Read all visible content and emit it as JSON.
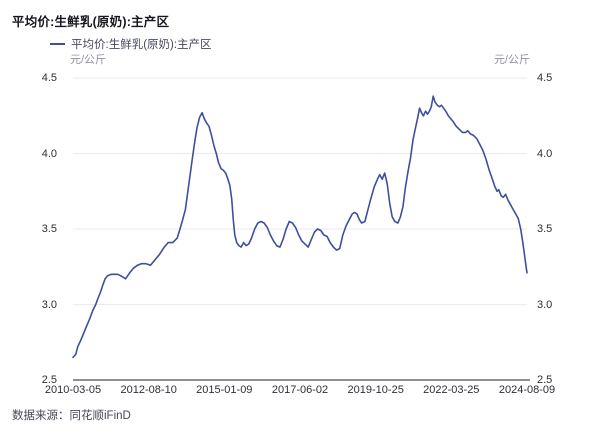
{
  "header": {
    "title": "平均价:生鲜乳(原奶):主产区"
  },
  "legend": {
    "label": "平均价:生鲜乳(原奶):主产区"
  },
  "axes": {
    "unit_left": "元/公斤",
    "unit_right": "元/公斤",
    "y_ticks": [
      "4.5",
      "4.0",
      "3.5",
      "3.0",
      "2.5"
    ],
    "x_ticks": [
      "2010-03-05",
      "2012-08-10",
      "2015-01-09",
      "2017-06-02",
      "2019-10-25",
      "2022-03-25",
      "2024-08-09"
    ]
  },
  "footer": {
    "source": "数据来源：同花顺iFinD"
  },
  "colors": {
    "line": "#3E4F9E",
    "grid": "#e9eaf2",
    "axis": "#8f8f9c",
    "text": "#2e2e3a"
  },
  "chart_data": {
    "type": "line",
    "title": "平均价:生鲜乳(原奶):主产区",
    "ylabel": "元/公斤",
    "ylim": [
      2.5,
      4.5
    ],
    "xlim_years": [
      2010.18,
      2024.6
    ],
    "y_tick_values": [
      4.5,
      4.0,
      3.5,
      3.0,
      2.5
    ],
    "x_tick_labels": [
      "2010-03-05",
      "2012-08-10",
      "2015-01-09",
      "2017-06-02",
      "2019-10-25",
      "2022-03-25",
      "2024-08-09"
    ],
    "grid": "horizontal",
    "legend_position": "top-left",
    "series": [
      {
        "name": "平均价:生鲜乳(原奶):主产区",
        "color": "#3E4F9E",
        "points": [
          [
            2010.18,
            2.65
          ],
          [
            2010.27,
            2.67
          ],
          [
            2010.33,
            2.72
          ],
          [
            2010.42,
            2.76
          ],
          [
            2010.5,
            2.8
          ],
          [
            2010.6,
            2.85
          ],
          [
            2010.7,
            2.9
          ],
          [
            2010.81,
            2.96
          ],
          [
            2010.9,
            3.0
          ],
          [
            2010.97,
            3.04
          ],
          [
            2011.05,
            3.08
          ],
          [
            2011.13,
            3.13
          ],
          [
            2011.2,
            3.17
          ],
          [
            2011.28,
            3.19
          ],
          [
            2011.4,
            3.2
          ],
          [
            2011.5,
            3.2
          ],
          [
            2011.6,
            3.2
          ],
          [
            2011.7,
            3.19
          ],
          [
            2011.85,
            3.17
          ],
          [
            2011.98,
            3.21
          ],
          [
            2012.1,
            3.24
          ],
          [
            2012.23,
            3.26
          ],
          [
            2012.35,
            3.27
          ],
          [
            2012.5,
            3.27
          ],
          [
            2012.64,
            3.26
          ],
          [
            2012.76,
            3.29
          ],
          [
            2012.92,
            3.33
          ],
          [
            2013.08,
            3.38
          ],
          [
            2013.2,
            3.41
          ],
          [
            2013.35,
            3.41
          ],
          [
            2013.49,
            3.44
          ],
          [
            2013.58,
            3.5
          ],
          [
            2013.66,
            3.56
          ],
          [
            2013.75,
            3.63
          ],
          [
            2013.85,
            3.78
          ],
          [
            2013.96,
            3.95
          ],
          [
            2014.05,
            4.08
          ],
          [
            2014.12,
            4.17
          ],
          [
            2014.2,
            4.24
          ],
          [
            2014.28,
            4.27
          ],
          [
            2014.35,
            4.23
          ],
          [
            2014.43,
            4.2
          ],
          [
            2014.5,
            4.18
          ],
          [
            2014.58,
            4.12
          ],
          [
            2014.66,
            4.05
          ],
          [
            2014.73,
            4.0
          ],
          [
            2014.8,
            3.94
          ],
          [
            2014.88,
            3.9
          ],
          [
            2014.95,
            3.89
          ],
          [
            2015.03,
            3.87
          ],
          [
            2015.1,
            3.83
          ],
          [
            2015.16,
            3.79
          ],
          [
            2015.22,
            3.7
          ],
          [
            2015.27,
            3.56
          ],
          [
            2015.32,
            3.46
          ],
          [
            2015.38,
            3.41
          ],
          [
            2015.45,
            3.39
          ],
          [
            2015.52,
            3.38
          ],
          [
            2015.6,
            3.41
          ],
          [
            2015.68,
            3.39
          ],
          [
            2015.76,
            3.4
          ],
          [
            2015.85,
            3.44
          ],
          [
            2015.95,
            3.5
          ],
          [
            2016.05,
            3.54
          ],
          [
            2016.15,
            3.55
          ],
          [
            2016.25,
            3.54
          ],
          [
            2016.35,
            3.51
          ],
          [
            2016.45,
            3.46
          ],
          [
            2016.55,
            3.42
          ],
          [
            2016.65,
            3.39
          ],
          [
            2016.75,
            3.38
          ],
          [
            2016.85,
            3.43
          ],
          [
            2016.95,
            3.5
          ],
          [
            2017.05,
            3.55
          ],
          [
            2017.15,
            3.54
          ],
          [
            2017.25,
            3.51
          ],
          [
            2017.35,
            3.46
          ],
          [
            2017.45,
            3.42
          ],
          [
            2017.55,
            3.4
          ],
          [
            2017.65,
            3.38
          ],
          [
            2017.75,
            3.43
          ],
          [
            2017.85,
            3.48
          ],
          [
            2017.95,
            3.5
          ],
          [
            2018.05,
            3.49
          ],
          [
            2018.15,
            3.46
          ],
          [
            2018.25,
            3.45
          ],
          [
            2018.35,
            3.41
          ],
          [
            2018.45,
            3.38
          ],
          [
            2018.55,
            3.36
          ],
          [
            2018.65,
            3.37
          ],
          [
            2018.75,
            3.46
          ],
          [
            2018.85,
            3.52
          ],
          [
            2018.95,
            3.56
          ],
          [
            2019.05,
            3.6
          ],
          [
            2019.12,
            3.61
          ],
          [
            2019.2,
            3.6
          ],
          [
            2019.28,
            3.56
          ],
          [
            2019.35,
            3.54
          ],
          [
            2019.45,
            3.55
          ],
          [
            2019.55,
            3.63
          ],
          [
            2019.65,
            3.71
          ],
          [
            2019.75,
            3.78
          ],
          [
            2019.85,
            3.83
          ],
          [
            2019.92,
            3.86
          ],
          [
            2020.0,
            3.83
          ],
          [
            2020.08,
            3.87
          ],
          [
            2020.16,
            3.8
          ],
          [
            2020.24,
            3.67
          ],
          [
            2020.32,
            3.58
          ],
          [
            2020.4,
            3.55
          ],
          [
            2020.5,
            3.54
          ],
          [
            2020.58,
            3.58
          ],
          [
            2020.66,
            3.65
          ],
          [
            2020.74,
            3.78
          ],
          [
            2020.82,
            3.88
          ],
          [
            2020.9,
            3.97
          ],
          [
            2020.98,
            4.09
          ],
          [
            2021.06,
            4.17
          ],
          [
            2021.13,
            4.24
          ],
          [
            2021.19,
            4.3
          ],
          [
            2021.25,
            4.27
          ],
          [
            2021.31,
            4.25
          ],
          [
            2021.38,
            4.28
          ],
          [
            2021.44,
            4.26
          ],
          [
            2021.5,
            4.28
          ],
          [
            2021.56,
            4.31
          ],
          [
            2021.62,
            4.38
          ],
          [
            2021.68,
            4.34
          ],
          [
            2021.75,
            4.32
          ],
          [
            2021.82,
            4.31
          ],
          [
            2021.88,
            4.32
          ],
          [
            2021.95,
            4.3
          ],
          [
            2022.02,
            4.28
          ],
          [
            2022.1,
            4.25
          ],
          [
            2022.18,
            4.23
          ],
          [
            2022.26,
            4.21
          ],
          [
            2022.35,
            4.18
          ],
          [
            2022.45,
            4.16
          ],
          [
            2022.55,
            4.14
          ],
          [
            2022.65,
            4.14
          ],
          [
            2022.72,
            4.15
          ],
          [
            2022.8,
            4.13
          ],
          [
            2022.9,
            4.12
          ],
          [
            2023.0,
            4.1
          ],
          [
            2023.1,
            4.06
          ],
          [
            2023.2,
            4.02
          ],
          [
            2023.3,
            3.96
          ],
          [
            2023.4,
            3.89
          ],
          [
            2023.5,
            3.83
          ],
          [
            2023.58,
            3.78
          ],
          [
            2023.65,
            3.75
          ],
          [
            2023.7,
            3.76
          ],
          [
            2023.78,
            3.72
          ],
          [
            2023.85,
            3.71
          ],
          [
            2023.92,
            3.73
          ],
          [
            2024.0,
            3.69
          ],
          [
            2024.08,
            3.66
          ],
          [
            2024.16,
            3.63
          ],
          [
            2024.24,
            3.6
          ],
          [
            2024.32,
            3.57
          ],
          [
            2024.4,
            3.5
          ],
          [
            2024.46,
            3.42
          ],
          [
            2024.52,
            3.33
          ],
          [
            2024.57,
            3.25
          ],
          [
            2024.6,
            3.21
          ]
        ]
      }
    ]
  }
}
